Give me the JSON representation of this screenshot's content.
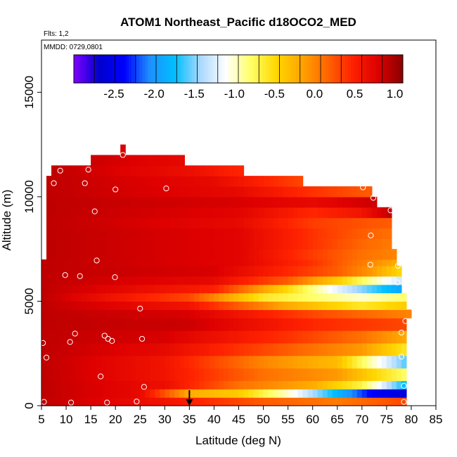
{
  "chart_data": {
    "type": "heatmap",
    "title": "ATOM1 Northeast_Pacific d18OCO2_MED",
    "annotations": {
      "flights": "Flts: 1,2",
      "dates": "MMDD: 0729,0801"
    },
    "xlabel": "Latitude (deg N)",
    "ylabel": "Altitude (m)",
    "xlim": [
      5,
      85
    ],
    "ylim": [
      0,
      17500
    ],
    "x_ticks": [
      "5",
      "10",
      "15",
      "20",
      "25",
      "30",
      "35",
      "40",
      "45",
      "50",
      "55",
      "60",
      "65",
      "70",
      "75",
      "80",
      "85"
    ],
    "y_ticks": [
      "0",
      "5000",
      "10000",
      "15000"
    ],
    "colorbar": {
      "range": [
        -3.0,
        1.1
      ],
      "tick_labels": [
        "-2.5",
        "-2.0",
        "-1.5",
        "-1.0",
        "-0.5",
        "0.0",
        "0.5",
        "1.0"
      ],
      "tick_values": [
        -2.5,
        -2.0,
        -1.5,
        -1.0,
        -0.5,
        0.0,
        0.5,
        1.0
      ],
      "placement": "top-inside",
      "colors": [
        "#7f00ff",
        "#0000cc",
        "#0000ff",
        "#1e90ff",
        "#00bfff",
        "#aad8ff",
        "#ffffff",
        "#ffff66",
        "#ffd700",
        "#ffa500",
        "#ff6600",
        "#ff2200",
        "#dd0000",
        "#8b0000"
      ]
    },
    "layers": [
      {
        "y0": 0,
        "y1": 400,
        "xmax": 79,
        "profile": [
          [
            5,
            0.9
          ],
          [
            30,
            0.6
          ],
          [
            50,
            0.2
          ],
          [
            65,
            0.05
          ],
          [
            79,
            0.3
          ]
        ]
      },
      {
        "y0": 400,
        "y1": 800,
        "xmax": 79,
        "profile": [
          [
            5,
            0.9
          ],
          [
            25,
            0.7
          ],
          [
            35,
            -0.2
          ],
          [
            45,
            -0.4
          ],
          [
            55,
            -1.0
          ],
          [
            65,
            -1.8
          ],
          [
            72,
            -2.4
          ],
          [
            79,
            -2.6
          ]
        ]
      },
      {
        "y0": 800,
        "y1": 1200,
        "xmax": 79,
        "profile": [
          [
            5,
            0.9
          ],
          [
            30,
            0.65
          ],
          [
            45,
            0.1
          ],
          [
            60,
            -0.2
          ],
          [
            70,
            -0.7
          ],
          [
            79,
            -1.8
          ]
        ]
      },
      {
        "y0": 1200,
        "y1": 1800,
        "xmax": 79,
        "profile": [
          [
            5,
            0.9
          ],
          [
            30,
            0.6
          ],
          [
            50,
            0.1
          ],
          [
            65,
            -0.1
          ],
          [
            79,
            -0.8
          ]
        ]
      },
      {
        "y0": 1800,
        "y1": 2400,
        "xmax": 79,
        "profile": [
          [
            5,
            0.9
          ],
          [
            30,
            0.6
          ],
          [
            50,
            0.0
          ],
          [
            65,
            -0.3
          ],
          [
            79,
            -1.6
          ]
        ]
      },
      {
        "y0": 2400,
        "y1": 3000,
        "xmax": 79,
        "profile": [
          [
            5,
            0.9
          ],
          [
            30,
            0.7
          ],
          [
            50,
            0.3
          ],
          [
            70,
            -0.1
          ],
          [
            79,
            -0.6
          ]
        ]
      },
      {
        "y0": 3000,
        "y1": 3600,
        "xmax": 79,
        "profile": [
          [
            5,
            0.9
          ],
          [
            30,
            0.8
          ],
          [
            55,
            0.4
          ],
          [
            70,
            0.1
          ],
          [
            79,
            -0.2
          ]
        ]
      },
      {
        "y0": 3600,
        "y1": 4200,
        "xmax": 79,
        "profile": [
          [
            5,
            0.9
          ],
          [
            35,
            0.85
          ],
          [
            60,
            0.45
          ],
          [
            79,
            0.3
          ]
        ]
      },
      {
        "y0": 4200,
        "y1": 4600,
        "xmax": 80,
        "profile": [
          [
            5,
            0.9
          ],
          [
            35,
            0.8
          ],
          [
            60,
            0.3
          ],
          [
            80,
            0.0
          ]
        ]
      },
      {
        "y0": 4600,
        "y1": 5000,
        "xmax": 79,
        "profile": [
          [
            5,
            0.9
          ],
          [
            35,
            0.6
          ],
          [
            55,
            -0.2
          ],
          [
            70,
            -0.6
          ],
          [
            79,
            -0.4
          ]
        ]
      },
      {
        "y0": 5000,
        "y1": 5400,
        "xmax": 79,
        "profile": [
          [
            5,
            0.9
          ],
          [
            35,
            0.3
          ],
          [
            50,
            -0.6
          ],
          [
            60,
            -0.8
          ],
          [
            70,
            -1.0
          ],
          [
            79,
            -0.8
          ]
        ]
      },
      {
        "y0": 5400,
        "y1": 5800,
        "xmax": 78,
        "profile": [
          [
            5,
            0.9
          ],
          [
            40,
            0.5
          ],
          [
            55,
            -0.5
          ],
          [
            65,
            -1.2
          ],
          [
            72,
            -1.6
          ],
          [
            78,
            -1.9
          ]
        ]
      },
      {
        "y0": 5800,
        "y1": 6200,
        "xmax": 78,
        "profile": [
          [
            5,
            0.9
          ],
          [
            40,
            0.7
          ],
          [
            55,
            0.2
          ],
          [
            65,
            -0.4
          ],
          [
            72,
            -0.9
          ],
          [
            78,
            -1.3
          ]
        ]
      },
      {
        "y0": 6200,
        "y1": 6700,
        "xmax": 78,
        "profile": [
          [
            5,
            0.9
          ],
          [
            40,
            0.8
          ],
          [
            55,
            0.45
          ],
          [
            65,
            0.2
          ],
          [
            72,
            -0.1
          ],
          [
            78,
            -0.5
          ]
        ]
      },
      {
        "y0": 6700,
        "y1": 7000,
        "xmax": 77,
        "profile": [
          [
            5,
            0.9
          ],
          [
            45,
            0.75
          ],
          [
            60,
            0.4
          ],
          [
            70,
            0.05
          ],
          [
            77,
            -0.2
          ]
        ]
      },
      {
        "y0": 7000,
        "y1": 7500,
        "xmax": 77,
        "profile": [
          [
            6,
            0.9
          ],
          [
            45,
            0.75
          ],
          [
            60,
            0.35
          ],
          [
            70,
            0.1
          ],
          [
            77,
            0.0
          ]
        ]
      },
      {
        "y0": 7500,
        "y1": 8000,
        "xmax": 76,
        "profile": [
          [
            6,
            0.9
          ],
          [
            45,
            0.75
          ],
          [
            60,
            0.4
          ],
          [
            70,
            0.15
          ],
          [
            76,
            0.05
          ]
        ]
      },
      {
        "y0": 8000,
        "y1": 8500,
        "xmax": 76,
        "profile": [
          [
            6,
            0.9
          ],
          [
            45,
            0.75
          ],
          [
            60,
            0.4
          ],
          [
            70,
            0.2
          ],
          [
            76,
            0.1
          ]
        ]
      },
      {
        "y0": 8500,
        "y1": 9000,
        "xmax": 76,
        "profile": [
          [
            6,
            0.9
          ],
          [
            45,
            0.7
          ],
          [
            60,
            0.35
          ],
          [
            70,
            0.25
          ],
          [
            76,
            0.2
          ]
        ]
      },
      {
        "y0": 9000,
        "y1": 9500,
        "xmax": 76,
        "profile": [
          [
            6,
            0.9
          ],
          [
            45,
            0.75
          ],
          [
            60,
            0.45
          ],
          [
            70,
            0.6
          ],
          [
            76,
            0.9
          ]
        ]
      },
      {
        "y0": 9500,
        "y1": 10000,
        "xmax": 73,
        "profile": [
          [
            6,
            0.9
          ],
          [
            45,
            0.8
          ],
          [
            60,
            0.7
          ],
          [
            73,
            0.85
          ]
        ]
      },
      {
        "y0": 10000,
        "y1": 10500,
        "xmax": 72,
        "profile": [
          [
            6,
            0.9
          ],
          [
            45,
            0.7
          ],
          [
            60,
            0.4
          ],
          [
            72,
            0.2
          ]
        ]
      },
      {
        "y0": 10500,
        "y1": 11000,
        "xmax": 58,
        "profile": [
          [
            6,
            0.9
          ],
          [
            40,
            0.7
          ],
          [
            58,
            0.3
          ]
        ]
      },
      {
        "y0": 11000,
        "y1": 11500,
        "xmax": 46,
        "profile": [
          [
            7,
            0.9
          ],
          [
            35,
            0.65
          ],
          [
            46,
            0.45
          ]
        ]
      },
      {
        "y0": 11500,
        "y1": 12000,
        "xmax": 34,
        "profile": [
          [
            15,
            0.85
          ],
          [
            34,
            0.7
          ]
        ]
      },
      {
        "y0": 12000,
        "y1": 12500,
        "xmax": 22,
        "profile": [
          [
            21,
            0.8
          ],
          [
            22,
            0.8
          ]
        ]
      }
    ],
    "points": [
      {
        "lat": 5.3,
        "alt": 3000
      },
      {
        "lat": 6.0,
        "alt": 2300
      },
      {
        "lat": 5.5,
        "alt": 180
      },
      {
        "lat": 7.5,
        "alt": 10650
      },
      {
        "lat": 8.8,
        "alt": 11250
      },
      {
        "lat": 9.8,
        "alt": 6250
      },
      {
        "lat": 10.8,
        "alt": 3050
      },
      {
        "lat": 11.0,
        "alt": 150
      },
      {
        "lat": 11.8,
        "alt": 3450
      },
      {
        "lat": 12.8,
        "alt": 6200
      },
      {
        "lat": 13.8,
        "alt": 10650
      },
      {
        "lat": 14.5,
        "alt": 11300
      },
      {
        "lat": 15.8,
        "alt": 9300
      },
      {
        "lat": 16.2,
        "alt": 6950
      },
      {
        "lat": 17.0,
        "alt": 1400
      },
      {
        "lat": 17.8,
        "alt": 3350
      },
      {
        "lat": 18.3,
        "alt": 150
      },
      {
        "lat": 18.5,
        "alt": 3200
      },
      {
        "lat": 19.3,
        "alt": 3100
      },
      {
        "lat": 19.9,
        "alt": 6150
      },
      {
        "lat": 20.0,
        "alt": 10350
      },
      {
        "lat": 21.5,
        "alt": 12000
      },
      {
        "lat": 24.3,
        "alt": 200
      },
      {
        "lat": 25.0,
        "alt": 4650
      },
      {
        "lat": 25.4,
        "alt": 3200
      },
      {
        "lat": 25.8,
        "alt": 900
      },
      {
        "lat": 30.3,
        "alt": 10400
      },
      {
        "lat": 70.2,
        "alt": 10450
      },
      {
        "lat": 72.3,
        "alt": 9950
      },
      {
        "lat": 71.8,
        "alt": 8150
      },
      {
        "lat": 71.7,
        "alt": 6750
      },
      {
        "lat": 75.8,
        "alt": 9350
      },
      {
        "lat": 77.3,
        "alt": 6700
      },
      {
        "lat": 77.2,
        "alt": 5900
      },
      {
        "lat": 78.0,
        "alt": 3500
      },
      {
        "lat": 78.0,
        "alt": 2350
      },
      {
        "lat": 78.5,
        "alt": 950
      },
      {
        "lat": 78.8,
        "alt": 4050
      },
      {
        "lat": 78.5,
        "alt": 180
      }
    ],
    "marker": {
      "lat": 35,
      "alt": 0,
      "shape": "down-arrow"
    }
  }
}
